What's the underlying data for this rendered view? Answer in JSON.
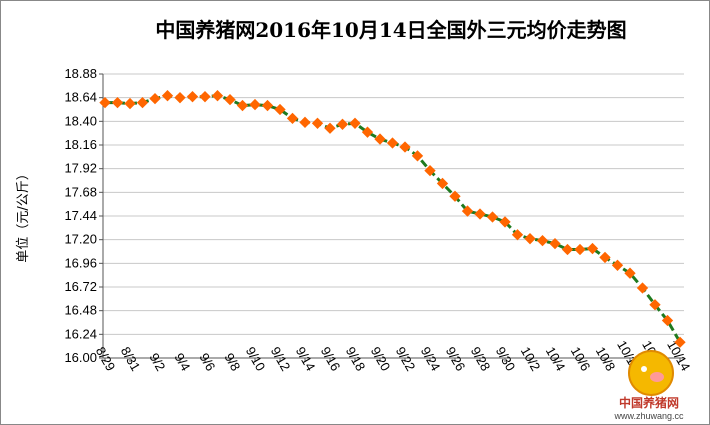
{
  "chart_data": {
    "type": "line",
    "title": "中国养猪网2016年10月14日全国外三元均价走势图",
    "ylabel": "单位（元/公斤）",
    "xlabel": "",
    "ylim": [
      16.0,
      18.88
    ],
    "yticks": [
      "18.88",
      "18.64",
      "18.40",
      "18.16",
      "17.92",
      "17.68",
      "17.44",
      "17.20",
      "16.96",
      "16.72",
      "16.48",
      "16.24",
      "16.00"
    ],
    "xtick_labels": [
      "8/29",
      "8/31",
      "9/2",
      "9/4",
      "9/6",
      "9/8",
      "9/10",
      "9/12",
      "9/14",
      "9/16",
      "9/18",
      "9/20",
      "9/22",
      "9/24",
      "9/26",
      "9/28",
      "9/30",
      "10/2",
      "10/4",
      "10/6",
      "10/8",
      "10/10",
      "10/12",
      "10/14"
    ],
    "grid": true,
    "legend": "none",
    "line_color": "#1f7a1f",
    "marker_color": "#ff6600",
    "series": [
      {
        "x": [
          "8/29",
          "8/30",
          "8/31",
          "9/1",
          "9/2",
          "9/3",
          "9/4",
          "9/5",
          "9/6",
          "9/7",
          "9/8",
          "9/9",
          "9/10",
          "9/11",
          "9/12",
          "9/13",
          "9/14",
          "9/15",
          "9/16",
          "9/17",
          "9/18",
          "9/19",
          "9/20",
          "9/21",
          "9/22",
          "9/23",
          "9/24",
          "9/25",
          "9/26",
          "9/27",
          "9/28",
          "9/29",
          "9/30",
          "10/1",
          "10/2",
          "10/3",
          "10/4",
          "10/5",
          "10/6",
          "10/7",
          "10/8",
          "10/9",
          "10/10",
          "10/11",
          "10/12",
          "10/13",
          "10/14"
        ],
        "values": [
          18.59,
          18.59,
          18.58,
          18.59,
          18.63,
          18.66,
          18.64,
          18.65,
          18.65,
          18.66,
          18.62,
          18.56,
          18.57,
          18.56,
          18.52,
          18.43,
          18.39,
          18.38,
          18.33,
          18.37,
          18.38,
          18.29,
          18.22,
          18.18,
          18.14,
          18.05,
          17.9,
          17.77,
          17.64,
          17.49,
          17.46,
          17.43,
          17.38,
          17.25,
          17.21,
          17.19,
          17.16,
          17.1,
          17.1,
          17.11,
          17.02,
          16.94,
          16.86,
          16.71,
          16.54,
          16.38,
          16.16
        ]
      }
    ]
  },
  "watermark": {
    "name": "中国养猪网",
    "url": "www.zhuwang.cc"
  }
}
